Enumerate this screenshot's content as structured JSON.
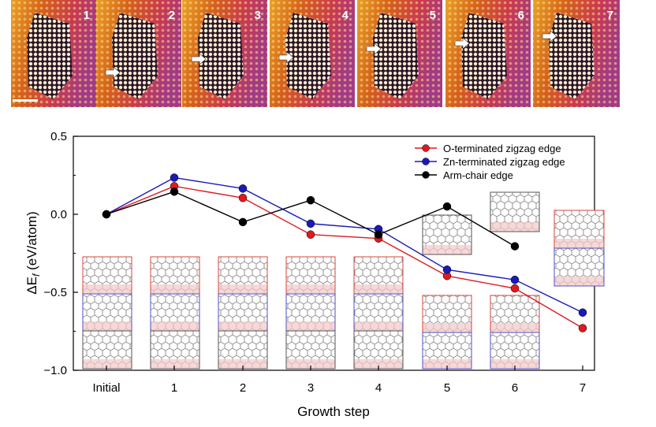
{
  "panel_labels": [
    "1",
    "2",
    "3",
    "4",
    "5",
    "6",
    "7"
  ],
  "chart_data": {
    "type": "line",
    "xlabel": "Growth step",
    "ylabel_symbol": "ΔE",
    "ylabel_subscript": "f",
    "ylabel_unit": " (eV/atom)",
    "categories": [
      "Initial",
      "1",
      "2",
      "3",
      "4",
      "5",
      "6",
      "7"
    ],
    "ylim": [
      -1.0,
      0.5
    ],
    "yticks": [
      0.5,
      0.0,
      -0.5,
      -1.0
    ],
    "ytick_labels": [
      "0.5",
      "0.0",
      "−0.5",
      "−1.0"
    ],
    "legend_position": "top-right",
    "series": [
      {
        "name": "O-terminated zigzag edge",
        "color": "#e0191f",
        "values": [
          0.0,
          0.18,
          0.105,
          -0.13,
          -0.155,
          -0.395,
          -0.475,
          -0.73
        ]
      },
      {
        "name": "Zn-terminated zigzag edge",
        "color": "#1a1ab8",
        "values": [
          0.0,
          0.235,
          0.165,
          -0.06,
          -0.095,
          -0.355,
          -0.42,
          -0.63
        ]
      },
      {
        "name": "Arm-chair edge",
        "color": "#000000",
        "values": [
          0.0,
          0.145,
          -0.05,
          0.09,
          -0.13,
          0.05,
          -0.205,
          null
        ]
      }
    ]
  }
}
